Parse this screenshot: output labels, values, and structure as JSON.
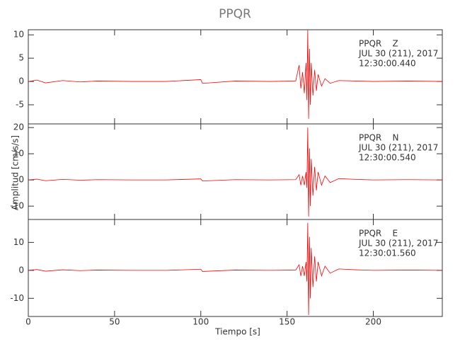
{
  "chart_data": [
    {
      "type": "line",
      "title": "PPQR",
      "x": [
        0,
        5,
        10,
        20,
        30,
        40,
        60,
        80,
        100,
        101,
        120,
        140,
        155,
        157,
        158,
        159,
        160,
        161,
        161.5,
        162,
        162.5,
        163,
        163.5,
        164,
        165,
        166,
        167,
        168,
        170,
        172,
        175,
        180,
        190,
        200,
        220,
        240
      ],
      "series": [
        {
          "name": "Z",
          "color": "#ff0000",
          "values": [
            0,
            0.3,
            -0.3,
            0.2,
            -0.1,
            0.1,
            0,
            0,
            0.4,
            -0.4,
            0.1,
            0,
            0.1,
            3.5,
            -1.5,
            2,
            -2.5,
            4,
            -4,
            11,
            -8,
            7,
            -5,
            4,
            -3,
            2.5,
            -2,
            1.5,
            -1,
            0.6,
            -0.4,
            0.2,
            0.1,
            0,
            0.1,
            0
          ]
        }
      ],
      "annotations": [
        "PPQR    Z",
        "JUL 30 (211), 2017",
        "12:30:00.440"
      ],
      "xlim": [
        0,
        240
      ],
      "xticks": [
        0,
        50,
        100,
        150,
        200
      ],
      "ylim": [
        -9.1,
        11.1
      ],
      "yticks": [
        -5,
        0,
        5,
        10
      ]
    },
    {
      "type": "line",
      "ylabel": "Amplitud [cm/s/s]",
      "x": [
        0,
        5,
        10,
        20,
        30,
        40,
        60,
        80,
        100,
        101,
        120,
        140,
        155,
        157,
        158,
        159,
        160,
        161,
        161.5,
        162,
        162.5,
        163,
        163.5,
        164,
        165,
        166,
        167,
        168,
        170,
        172,
        175,
        180,
        190,
        200,
        220,
        240
      ],
      "series": [
        {
          "name": "N",
          "color": "#ff0000",
          "values": [
            0,
            0.3,
            -0.3,
            0.2,
            -0.1,
            0.1,
            0,
            0,
            0.4,
            -0.4,
            0.1,
            0,
            0.1,
            2,
            -2,
            1.5,
            -2,
            3,
            -3,
            20,
            -14,
            12,
            -10,
            8,
            -6,
            5,
            -4,
            3,
            -2,
            1.5,
            -1,
            0.5,
            0.2,
            0,
            0.1,
            0
          ]
        }
      ],
      "annotations": [
        "PPQR    N",
        "JUL 30 (211), 2017",
        "12:30:00.540"
      ],
      "xlim": [
        0,
        240
      ],
      "xticks": [
        0,
        50,
        100,
        150,
        200
      ],
      "ylim": [
        -15.1,
        21.4
      ],
      "yticks": [
        -10,
        0,
        10,
        20
      ]
    },
    {
      "type": "line",
      "xlabel": "Tiempo [s]",
      "x": [
        0,
        5,
        10,
        20,
        30,
        40,
        60,
        80,
        100,
        101,
        120,
        140,
        155,
        157,
        158,
        159,
        160,
        161,
        161.5,
        162,
        162.5,
        163,
        163.5,
        164,
        165,
        166,
        167,
        168,
        170,
        172,
        175,
        180,
        190,
        200,
        220,
        240
      ],
      "series": [
        {
          "name": "E",
          "color": "#ff0000",
          "values": [
            0,
            0.3,
            -0.3,
            0.2,
            -0.1,
            0.1,
            0,
            0,
            0.4,
            -0.4,
            0.1,
            0,
            0.1,
            2,
            -2,
            1.5,
            -2,
            3,
            -4,
            17,
            -16,
            12,
            -10,
            8,
            -6,
            5,
            -4,
            3,
            -2,
            1.5,
            -1,
            0.5,
            0.2,
            0,
            0.1,
            0
          ]
        }
      ],
      "annotations": [
        "PPQR    E",
        "JUL 30 (211), 2017",
        "12:30:01.560"
      ],
      "xlim": [
        0,
        240
      ],
      "xticks": [
        0,
        50,
        100,
        150,
        200
      ],
      "ylim": [
        -16.5,
        18.2
      ],
      "yticks": [
        -10,
        0,
        10
      ]
    }
  ]
}
